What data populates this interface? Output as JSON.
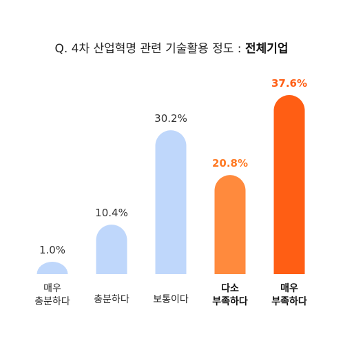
{
  "chart_data": {
    "type": "bar",
    "title_prefix": "Q. 4차 산업혁명 관련 기술활용 정도 : ",
    "title_emphasis": "전체기업",
    "categories": [
      [
        "매우",
        "충분하다"
      ],
      [
        "충분하다"
      ],
      [
        "보통이다"
      ],
      [
        "다소",
        "부족하다"
      ],
      [
        "매우",
        "부족하다"
      ]
    ],
    "values": [
      1.0,
      10.4,
      30.2,
      20.8,
      37.6
    ],
    "value_labels": [
      "1.0%",
      "10.4%",
      "30.2%",
      "20.8%",
      "37.6%"
    ],
    "bar_colors": [
      "#bfd7fb",
      "#bfd7fb",
      "#bfd7fb",
      "#ff8a3d",
      "#ff5e14"
    ],
    "value_label_colors": [
      "#333333",
      "#333333",
      "#333333",
      "#ff7a24",
      "#ff5e14"
    ],
    "bold_categories": [
      false,
      false,
      false,
      true,
      true
    ],
    "ylim": [
      0,
      37.6
    ]
  }
}
